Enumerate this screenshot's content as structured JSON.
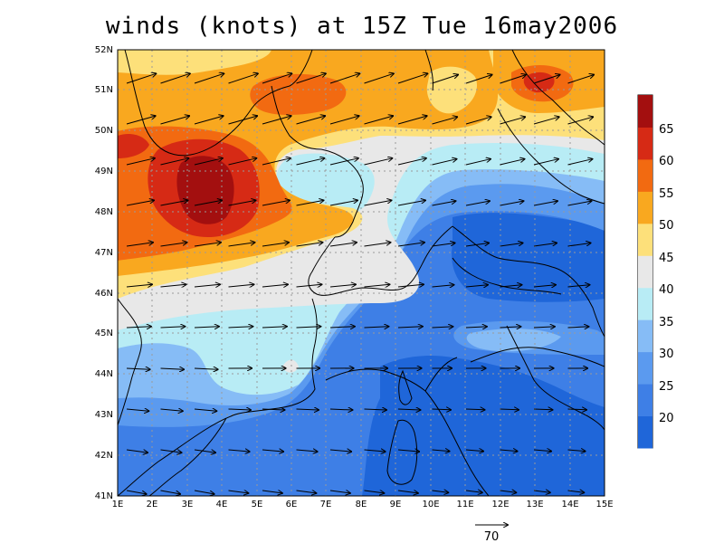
{
  "title": "winds (knots) at 15Z Tue 16may2006",
  "map": {
    "lon_range": [
      1,
      15
    ],
    "lat_range": [
      41,
      52
    ],
    "x_ticks": [
      "1E",
      "2E",
      "3E",
      "4E",
      "5E",
      "6E",
      "7E",
      "8E",
      "9E",
      "10E",
      "11E",
      "12E",
      "13E",
      "14E",
      "15E"
    ],
    "y_ticks": [
      "41N",
      "42N",
      "43N",
      "44N",
      "45N",
      "46N",
      "47N",
      "48N",
      "49N",
      "50N",
      "51N",
      "52N"
    ],
    "grid": "dotted"
  },
  "colorbar": {
    "labels": [
      "20",
      "25",
      "30",
      "35",
      "40",
      "45",
      "50",
      "55",
      "60",
      "65"
    ],
    "colors": [
      "#1f66d9",
      "#3e7fe6",
      "#5b9aef",
      "#86bcf6",
      "#b8ecf5",
      "#e8e8e8",
      "#fde07a",
      "#f9a81f",
      "#f26a11",
      "#d62a15",
      "#a30f0f"
    ]
  },
  "reference_vector": {
    "label": "70"
  },
  "colors": {
    "c15": "#1f66d9",
    "c20": "#3e7fe6",
    "c25": "#5b9aef",
    "c30": "#86bcf6",
    "c35": "#b8ecf5",
    "c40": "#e8e8e8",
    "c45": "#fde07a",
    "c50": "#f9a81f",
    "c55": "#f26a11",
    "c60": "#d62a15",
    "c65": "#a30f0f"
  }
}
